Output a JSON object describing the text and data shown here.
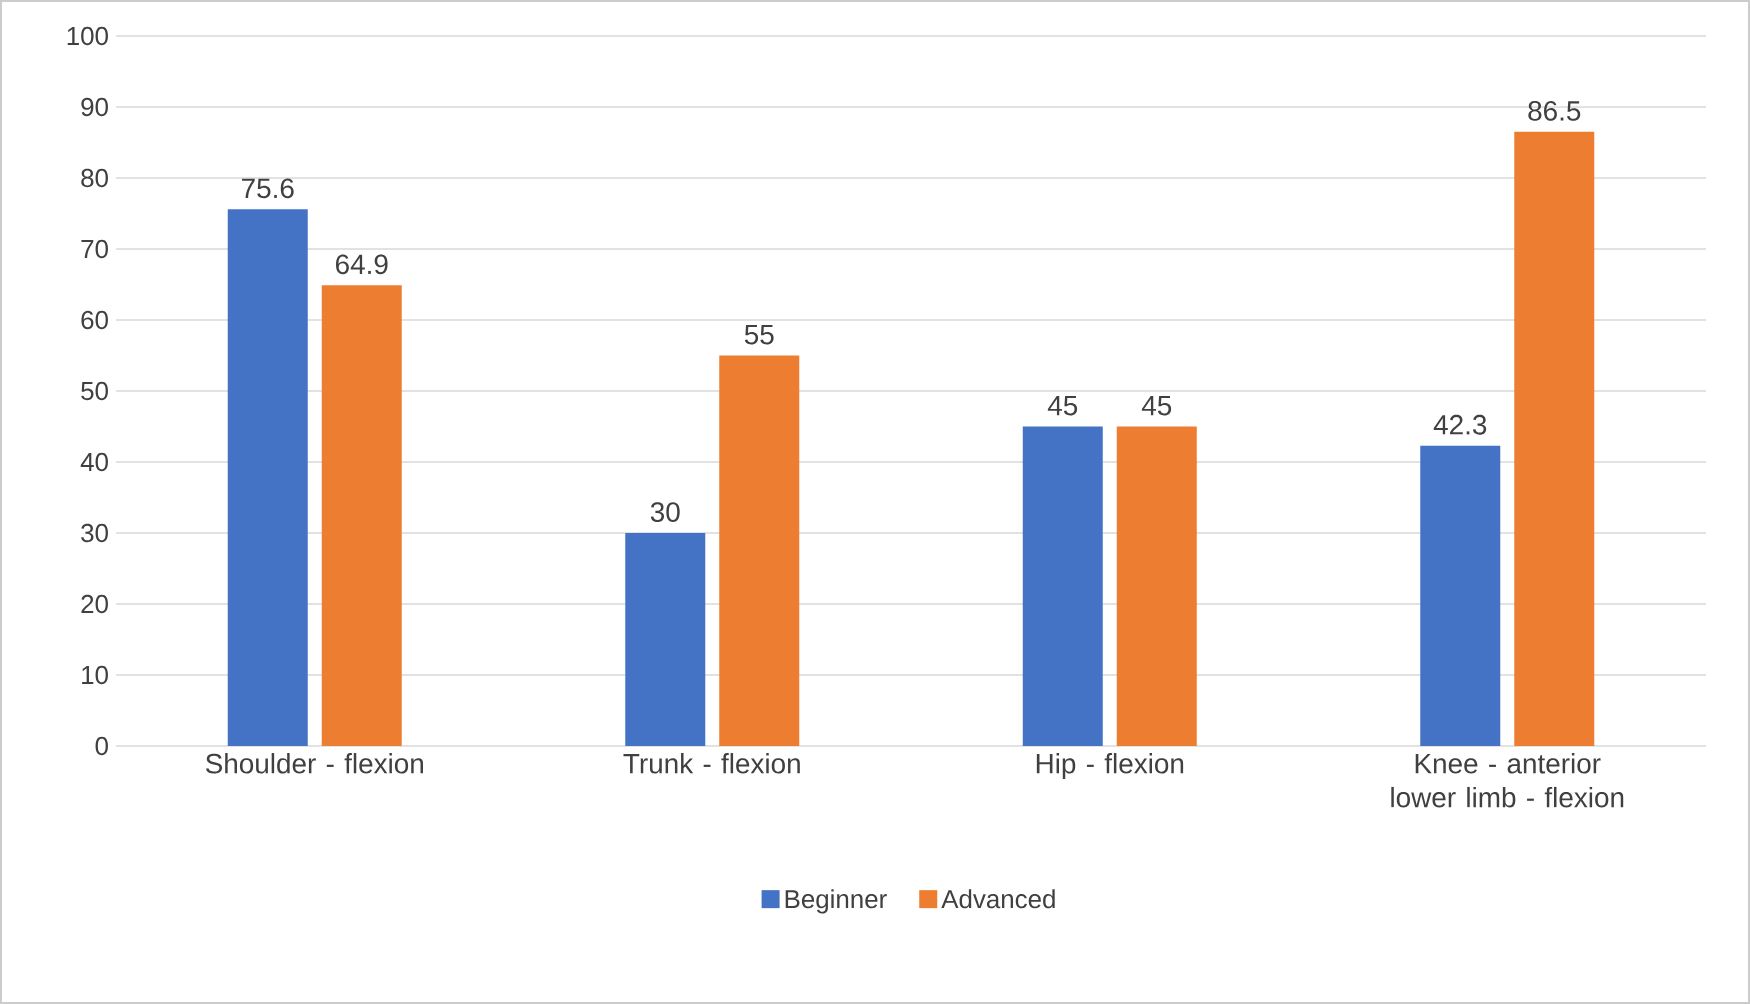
{
  "chart_data": {
    "type": "bar",
    "categories": [
      "Shoulder - flexion",
      "Trunk - flexion",
      "Hip - flexion",
      "Knee - anterior lower limb - flexion"
    ],
    "series": [
      {
        "name": "Beginner",
        "color": "#4472c4",
        "values": [
          75.6,
          30,
          45,
          42.3
        ]
      },
      {
        "name": "Advanced",
        "color": "#ed7d31",
        "values": [
          64.9,
          55,
          45,
          86.5
        ]
      }
    ],
    "ylim": [
      0,
      100
    ],
    "yticks": [
      0,
      10,
      20,
      30,
      40,
      50,
      60,
      70,
      80,
      90,
      100
    ],
    "grid": "y",
    "legend": "bottom",
    "data_labels": true
  }
}
